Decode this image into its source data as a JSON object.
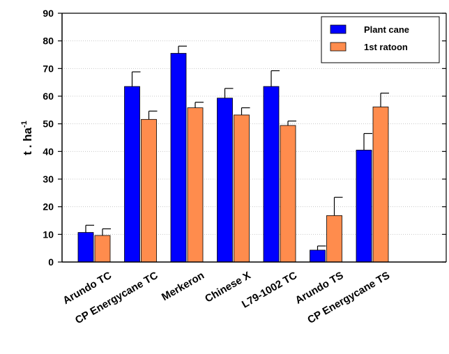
{
  "chart_data": {
    "type": "bar",
    "categories": [
      "Arundo TC",
      "CP Energycane TC",
      "Merkeron",
      "Chinese X",
      "L79-1002 TC",
      "Arundo TS",
      "CP Energycane TS"
    ],
    "series": [
      {
        "name": "Plant cane",
        "color": "#0000ff",
        "values": [
          10.7,
          63.5,
          75.5,
          59.3,
          63.5,
          4.3,
          40.5
        ],
        "errors": [
          2.6,
          5.3,
          2.6,
          3.5,
          5.7,
          1.5,
          6.0
        ]
      },
      {
        "name": "1st ratoon",
        "color": "#ff8c4d",
        "values": [
          9.6,
          51.6,
          55.8,
          53.2,
          49.4,
          16.8,
          56.1
        ],
        "errors": [
          2.4,
          3.0,
          2.0,
          2.6,
          1.6,
          6.6,
          5.0
        ]
      }
    ],
    "ylabel": "t . ha",
    "ylabel_superscript": "-1",
    "ylim": [
      0,
      90
    ],
    "yticks": [
      "0",
      "10",
      "20",
      "30",
      "40",
      "50",
      "60",
      "70",
      "80",
      "90"
    ],
    "grid": true,
    "legend": "top-right",
    "error_bars": true
  }
}
